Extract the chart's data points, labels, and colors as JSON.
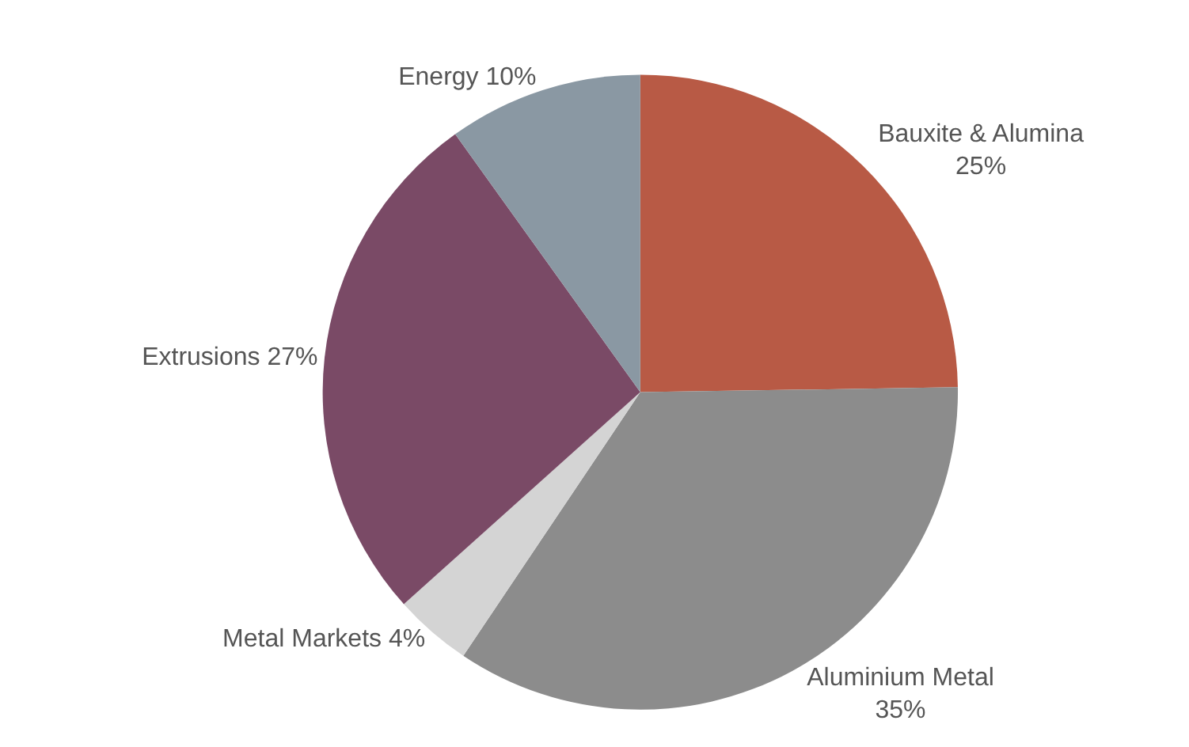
{
  "chart_data": {
    "type": "pie",
    "categories": [
      "Bauxite & Alumina",
      "Aluminium Metal",
      "Metal Markets",
      "Extrusions",
      "Energy"
    ],
    "values": [
      25,
      35,
      4,
      27,
      10
    ],
    "value_labels": [
      "25%",
      "35%",
      "4%",
      "27%",
      "10%"
    ],
    "colors": [
      "#b85a45",
      "#8c8c8c",
      "#d4d4d4",
      "#7a4a66",
      "#8a98a3"
    ],
    "legend": false
  }
}
